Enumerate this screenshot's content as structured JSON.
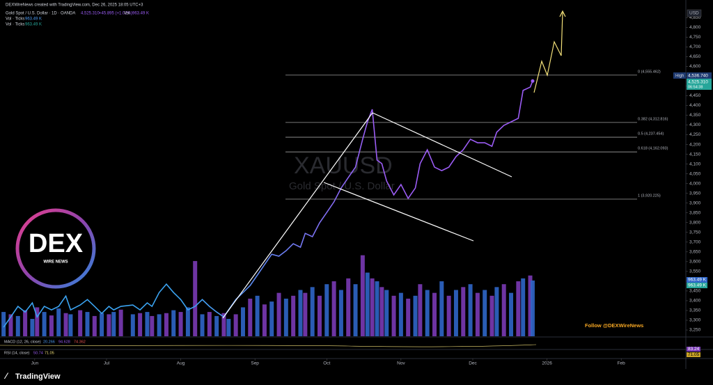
{
  "chart_data": {
    "type": "line",
    "header": "DEXWireNews created with TradingView.com, Dec 26, 2025 18:05 UTC+3",
    "symbol": "Gold Spot / U.S. Dollar · 1D · OANDA",
    "last_price": "4,525.310",
    "change": "+45.895 (+1.02%)",
    "vol_label": "Vol",
    "vol_value": "963.49 K",
    "vol_ticks": [
      {
        "name": "Vol · Ticks",
        "value": "963.49 K"
      },
      {
        "name": "Vol · Ticks",
        "value": "963.49 K"
      }
    ],
    "watermark": "XAUUSD",
    "watermark_sub": "Gold Spot / U.S. Dollar",
    "currency": "USD",
    "high_label": "High",
    "high_value": "4,536.740",
    "price_tag": "4,525.310",
    "countdown": "06:54:38",
    "volume_tags": [
      "963.49 K",
      "963.49 K"
    ],
    "rsi_tags": [
      "83.24",
      "71.05"
    ],
    "macd": {
      "name": "MACD (12, 26, close)",
      "values": [
        "20.266",
        "94.628",
        "74.362"
      ]
    },
    "rsi": {
      "name": "RSI (14, close)",
      "values": [
        "50.74",
        "71.05"
      ]
    },
    "follow": "Follow @DEXWireNews",
    "logo": {
      "title": "DEX",
      "subtitle": "WIRE NEWS"
    },
    "brand": "TradingView",
    "fib_levels": [
      {
        "label": "0 (4,555.462)",
        "value": 4555.462
      },
      {
        "label": "0.382 (4,312.816)",
        "value": 4312.816
      },
      {
        "label": "0.5 (4,237.454)",
        "value": 4237.454
      },
      {
        "label": "0.618 (4,162.093)",
        "value": 4162.093
      },
      {
        "label": "1 (3,920.225)",
        "value": 3920.225
      }
    ],
    "x": [
      -13,
      -10,
      -7,
      -4,
      -1,
      1,
      4,
      7,
      10,
      13,
      15,
      19,
      22,
      25,
      28,
      31,
      33,
      36,
      41,
      44,
      47,
      49,
      52,
      55,
      58,
      61,
      64,
      67,
      70,
      73,
      76,
      79,
      81,
      84,
      87,
      90,
      93,
      96,
      99,
      102,
      105,
      108,
      111,
      113,
      116,
      119,
      122,
      125,
      128,
      131,
      134,
      137,
      139,
      141,
      143,
      145,
      147,
      150,
      153,
      156,
      159,
      161,
      164,
      167,
      170,
      173,
      176,
      179,
      182,
      185,
      188,
      191,
      193,
      196,
      199,
      202,
      204,
      207,
      208
    ],
    "series": [
      {
        "name": "Gold Spot / U.S. Dollar",
        "colors": [
          "#3ba4f2",
          "#9b5cf5"
        ],
        "values": [
          3264,
          3317,
          3371,
          3342,
          3389,
          3317,
          3371,
          3353,
          3371,
          3424,
          3353,
          3378,
          3406,
          3371,
          3335,
          3371,
          3353,
          3371,
          3378,
          3353,
          3389,
          3371,
          3442,
          3485,
          3442,
          3406,
          3353,
          3371,
          3406,
          3371,
          3342,
          3317,
          3353,
          3406,
          3442,
          3478,
          3531,
          3585,
          3638,
          3628,
          3656,
          3692,
          3674,
          3745,
          3728,
          3799,
          3852,
          3906,
          3977,
          4031,
          4084,
          4227,
          4316,
          4380,
          4120,
          4102,
          4013,
          3942,
          3995,
          3924,
          3977,
          4102,
          4173,
          4084,
          4066,
          4084,
          4138,
          4173,
          4227,
          4209,
          4209,
          4191,
          4263,
          4298,
          4316,
          4334,
          4477,
          4494,
          4525
        ]
      },
      {
        "name": "Vol",
        "type": "bar",
        "axis": "y2",
        "colors": [
          "#2f66c8",
          "#7a3ab5"
        ],
        "values": [
          420,
          380,
          350,
          450,
          300,
          500,
          420,
          360,
          480,
          400,
          380,
          450,
          420,
          350,
          400,
          380,
          420,
          460,
          380,
          400,
          420,
          350,
          380,
          400,
          450,
          420,
          500,
          1300,
          380,
          420,
          350,
          400,
          300,
          380,
          500,
          650,
          700,
          550,
          600,
          750,
          650,
          700,
          800,
          750,
          850,
          700,
          900,
          950,
          800,
          1000,
          900,
          1400,
          1100,
          1000,
          950,
          850,
          800,
          700,
          750,
          650,
          700,
          900,
          800,
          750,
          950,
          700,
          800,
          850,
          900,
          750,
          800,
          700,
          850,
          900,
          750,
          950,
          1000,
          1050,
          963.49
        ]
      }
    ],
    "xlim": [
      -14.5,
      272
    ],
    "xticks": [
      {
        "value": 0,
        "label": "Jun"
      },
      {
        "value": 30,
        "label": "Jul"
      },
      {
        "value": 61,
        "label": "Aug"
      },
      {
        "value": 92,
        "label": "Sep"
      },
      {
        "value": 122,
        "label": "Oct"
      },
      {
        "value": 153,
        "label": "Nov"
      },
      {
        "value": 183,
        "label": "Dec"
      },
      {
        "value": 214,
        "label": "2026"
      },
      {
        "value": 245,
        "label": "Feb"
      }
    ],
    "ylim": [
      3218,
      4890
    ],
    "yticks": [
      {
        "value": 3250,
        "label": "3,250"
      },
      {
        "value": 3300,
        "label": "3,300"
      },
      {
        "value": 3350,
        "label": "3,350"
      },
      {
        "value": 3400,
        "label": "3,400"
      },
      {
        "value": 3450,
        "label": "3,450"
      },
      {
        "value": 3500,
        "label": "3,500"
      },
      {
        "value": 3550,
        "label": "3,550"
      },
      {
        "value": 3600,
        "label": "3,600"
      },
      {
        "value": 3650,
        "label": "3,650"
      },
      {
        "value": 3700,
        "label": "3,700"
      },
      {
        "value": 3750,
        "label": "3,750"
      },
      {
        "value": 3800,
        "label": "3,800"
      },
      {
        "value": 3850,
        "label": "3,850"
      },
      {
        "value": 3900,
        "label": "3,900"
      },
      {
        "value": 3950,
        "label": "3,950"
      },
      {
        "value": 4000,
        "label": "4,000"
      },
      {
        "value": 4050,
        "label": "4,050"
      },
      {
        "value": 4100,
        "label": "4,100"
      },
      {
        "value": 4150,
        "label": "4,150"
      },
      {
        "value": 4200,
        "label": "4,200"
      },
      {
        "value": 4250,
        "label": "4,250"
      },
      {
        "value": 4300,
        "label": "4,300"
      },
      {
        "value": 4350,
        "label": "4,350"
      },
      {
        "value": 4400,
        "label": "4,400"
      },
      {
        "value": 4450,
        "label": "4,450"
      },
      {
        "value": 4500,
        "label": "4,500"
      },
      {
        "value": 4550,
        "label": "4,550"
      },
      {
        "value": 4600,
        "label": "4,600"
      },
      {
        "value": 4650,
        "label": "4,650"
      },
      {
        "value": 4700,
        "label": "4,700"
      },
      {
        "value": 4750,
        "label": "4,750"
      },
      {
        "value": 4800,
        "label": "4,800"
      },
      {
        "value": 4850,
        "label": "4,850"
      }
    ],
    "y2lim": [
      0,
      1600
    ]
  }
}
